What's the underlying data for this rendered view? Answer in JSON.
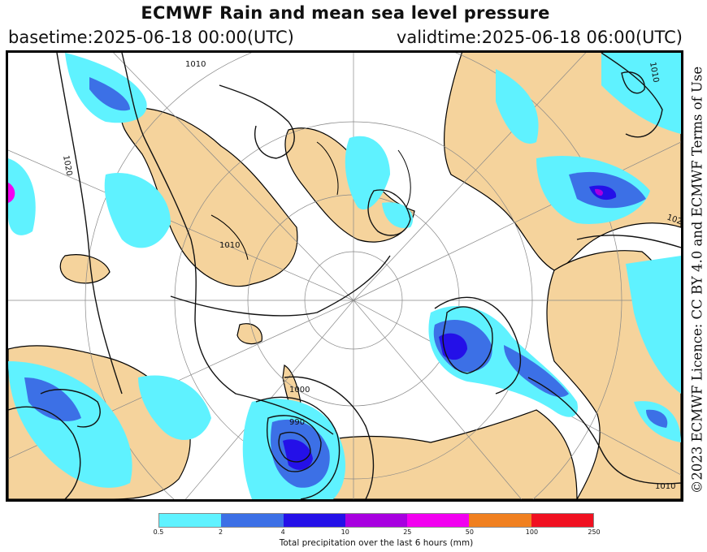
{
  "title": "ECMWF Rain and mean sea level pressure",
  "basetime": "basetime:2025-06-18 00:00(UTC)",
  "validtime": "validtime:2025-06-18 06:00(UTC)",
  "licence": "©2023 ECMWF Licence: CC BY 4.0 and ECMWF Terms of Use",
  "colorbar": {
    "label": "Total precipitation over the last 6 hours (mm)",
    "ticks": [
      "0.5",
      "2",
      "4",
      "10",
      "25",
      "50",
      "100",
      "250"
    ],
    "colors": [
      "#5ff2ff",
      "#3c70e6",
      "#2410e8",
      "#a800e0",
      "#f200f0",
      "#f08020",
      "#f01020"
    ]
  },
  "map": {
    "land_color": "#f5d39c",
    "ocean_color": "#ffffff",
    "isobar_labels": [
      "1010",
      "1020",
      "1010",
      "1010",
      "1000",
      "990",
      "1020",
      "1010"
    ]
  }
}
